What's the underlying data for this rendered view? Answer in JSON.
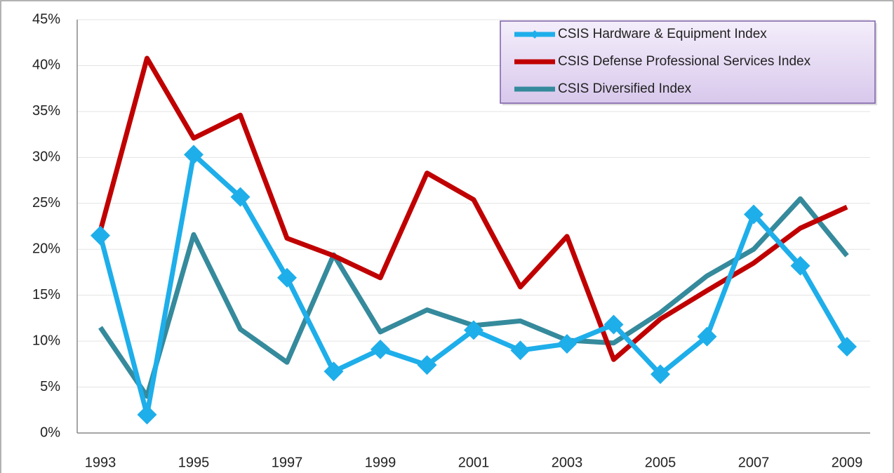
{
  "chart_data": {
    "type": "line",
    "categories": [
      "1993",
      null,
      "1995",
      null,
      "1997",
      null,
      "1999",
      null,
      "2001",
      null,
      "2003",
      null,
      "2005",
      null,
      "2007",
      null,
      "2009"
    ],
    "series": [
      {
        "name": "CSIS Hardware & Equipment Index",
        "color": "#1eaeea",
        "marker": "diamond",
        "values": [
          21.5,
          2,
          30.3,
          25.7,
          16.9,
          6.7,
          9.1,
          7.4,
          11.2,
          9.0,
          9.7,
          11.8,
          6.4,
          10.5,
          23.8,
          18.2,
          9.4
        ]
      },
      {
        "name": "CSIS Defense Professional Services Index",
        "color": "#c00000",
        "values": [
          22,
          40.8,
          32.1,
          34.6,
          21.2,
          19.3,
          16.9,
          28.3,
          25.4,
          15.9,
          21.4,
          8.0,
          12.4,
          15.5,
          18.5,
          22.3,
          24.6
        ]
      },
      {
        "name": "CSIS Diversified Index",
        "color": "#358a9c",
        "values": [
          11.5,
          4,
          21.6,
          11.3,
          7.7,
          19.4,
          11.0,
          13.4,
          11.7,
          12.2,
          10.1,
          9.8,
          13.1,
          17.1,
          20.0,
          25.5,
          19.3
        ]
      }
    ],
    "ylim": [
      0,
      45
    ],
    "yticks": [
      {
        "value": 0,
        "label": "0%"
      },
      {
        "value": 5,
        "label": "5%"
      },
      {
        "value": 10,
        "label": "10%"
      },
      {
        "value": 15,
        "label": "15%"
      },
      {
        "value": 20,
        "label": "20%"
      },
      {
        "value": 25,
        "label": "25%"
      },
      {
        "value": 30,
        "label": "30%"
      },
      {
        "value": 35,
        "label": "35%"
      },
      {
        "value": 40,
        "label": "40%"
      },
      {
        "value": 45,
        "label": "45%"
      }
    ],
    "grid": true,
    "legend": "top-right"
  }
}
